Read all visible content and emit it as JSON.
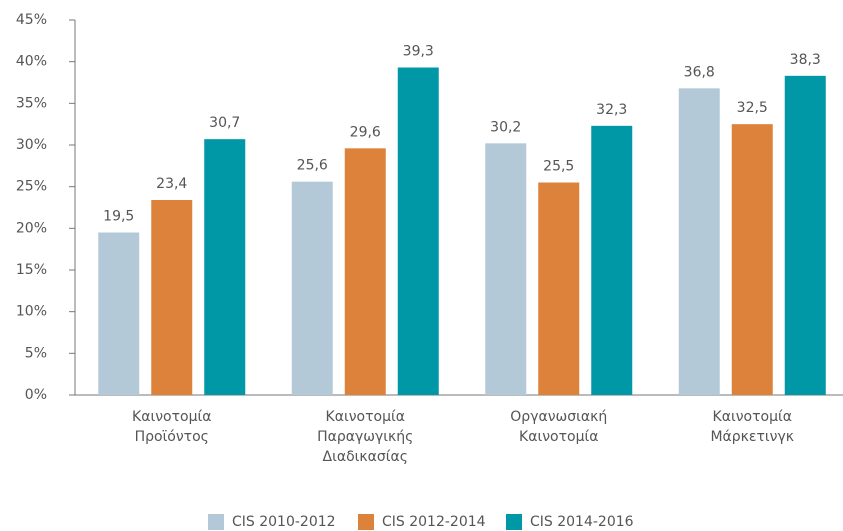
{
  "chart_data": {
    "type": "bar",
    "categories": [
      "Καινοτομία\nΠροϊόντος",
      "Καινοτομία\nΠαραγωγικής\nΔιαδικασίας",
      "Οργανωσιακή\nΚαινοτομία",
      "Καινοτομία\nΜάρκετινγκ"
    ],
    "series": [
      {
        "name": "CIS 2010-2012",
        "color": "#b4c9d8",
        "values": [
          19.5,
          25.6,
          30.2,
          36.8
        ],
        "value_labels": [
          "19,5",
          "25,6",
          "30,2",
          "36,8"
        ]
      },
      {
        "name": "CIS 2012-2014",
        "color": "#dc823a",
        "values": [
          23.4,
          29.6,
          25.5,
          32.5
        ],
        "value_labels": [
          "23,4",
          "29,6",
          "25,5",
          "32,5"
        ]
      },
      {
        "name": "CIS 2014-2016",
        "color": "#0097a6",
        "values": [
          30.7,
          39.3,
          32.3,
          38.3
        ],
        "value_labels": [
          "30,7",
          "39,3",
          "32,3",
          "38,3"
        ]
      }
    ],
    "ylim": [
      0,
      45
    ],
    "yticks": [
      {
        "value": 0,
        "label": "0%"
      },
      {
        "value": 5,
        "label": "5%"
      },
      {
        "value": 10,
        "label": "10%"
      },
      {
        "value": 15,
        "label": "15%"
      },
      {
        "value": 20,
        "label": "20%"
      },
      {
        "value": 25,
        "label": "25%"
      },
      {
        "value": 30,
        "label": "30%"
      },
      {
        "value": 35,
        "label": "35%"
      },
      {
        "value": 40,
        "label": "40%"
      },
      {
        "value": 45,
        "label": "45%"
      }
    ],
    "legend": "bottom"
  }
}
